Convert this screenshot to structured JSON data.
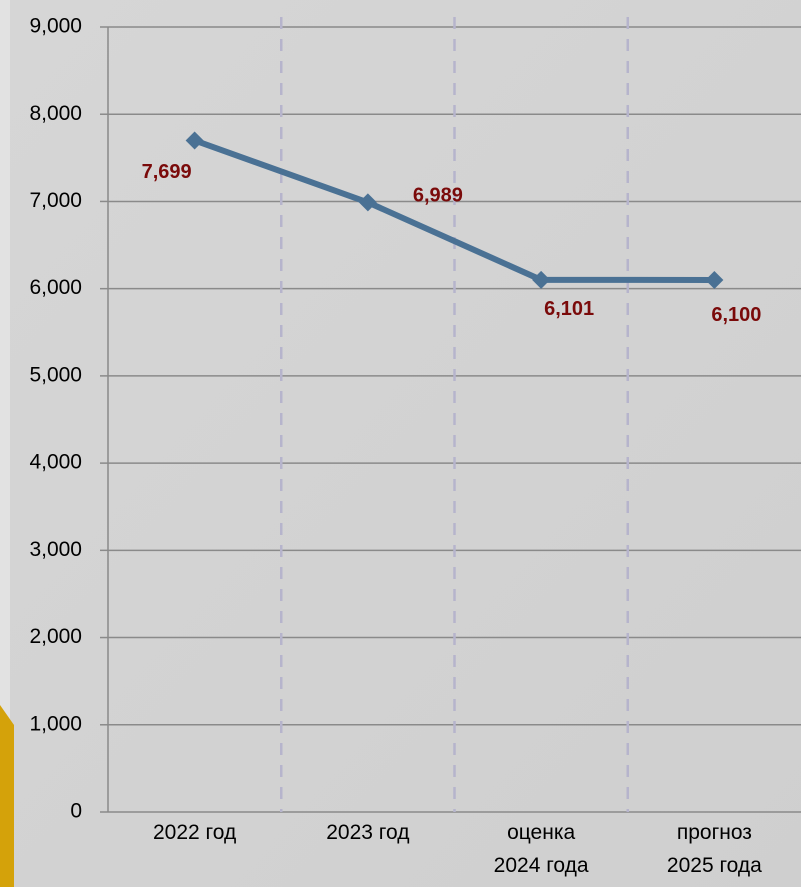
{
  "chart_data": {
    "type": "line",
    "categories": [
      "2022 год",
      "2023 год",
      "оценка\n2024 года",
      "прогноз\n2025 года"
    ],
    "series": [
      {
        "color": "#4a7194",
        "values": [
          7699,
          6989,
          6101,
          6100
        ],
        "value_labels": [
          "7,699",
          "6,989",
          "6,101",
          "6,100"
        ]
      }
    ],
    "ylim": [
      0,
      9000
    ],
    "yticks": [
      0,
      {
        "value": 1000,
        "label": "1,000"
      },
      {
        "value": 2000,
        "label": "2,000"
      },
      {
        "value": 3000,
        "label": "3,000"
      },
      {
        "value": 4000,
        "label": "4,000"
      },
      {
        "value": 5000,
        "label": "5,000"
      },
      {
        "value": 6000,
        "label": "6,000"
      },
      {
        "value": 7000,
        "label": "7,000"
      },
      {
        "value": 8000,
        "label": "8,000"
      },
      {
        "value": 9000,
        "label": "9,000"
      }
    ],
    "grid": true,
    "label_color": "#7a0a0a"
  }
}
